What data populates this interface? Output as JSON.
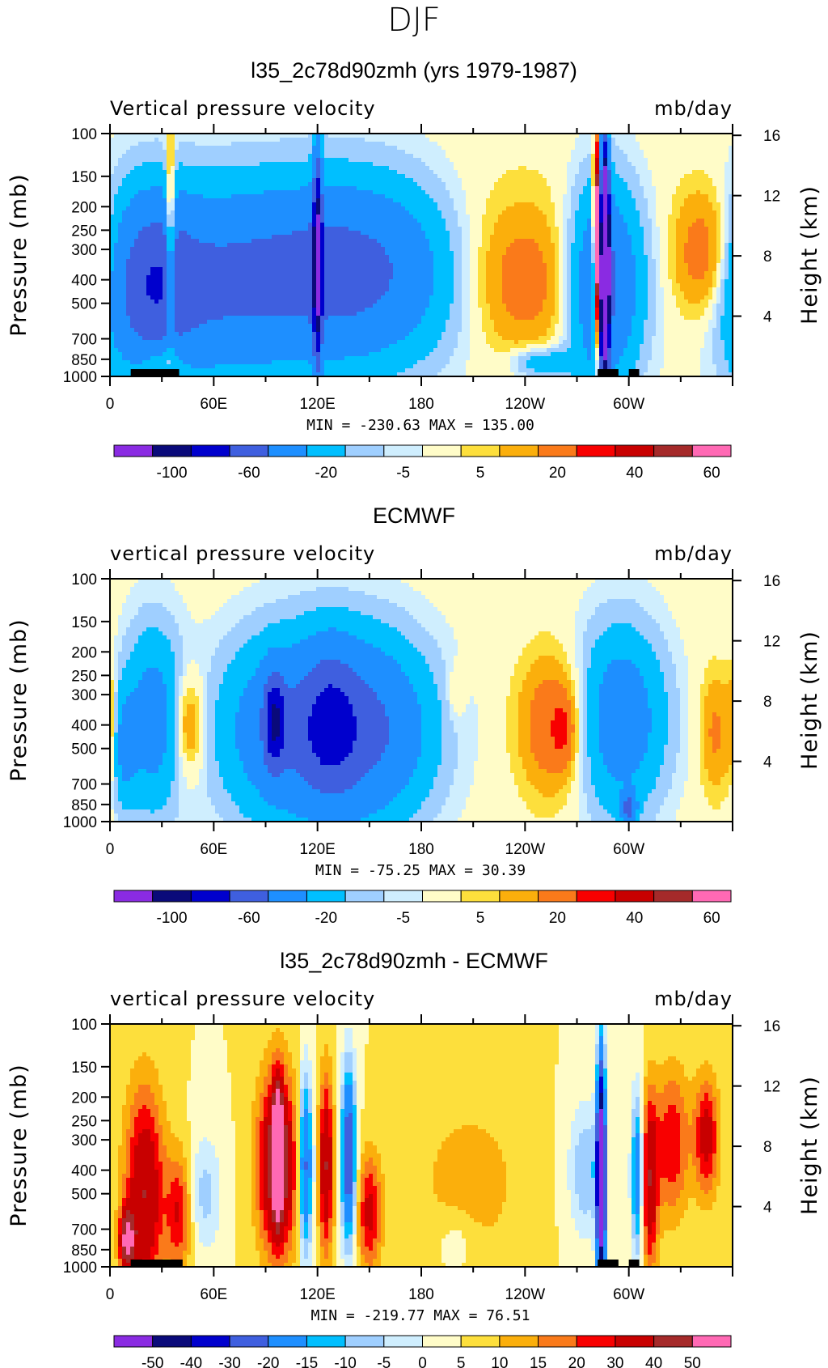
{
  "page_title": "DJF",
  "colors": {
    "omega": [
      "#8a2be2",
      "#0a0a7a",
      "#0000cd",
      "#3f5fdf",
      "#1e8fff",
      "#00bfff",
      "#9fcfff",
      "#cfeefe",
      "#fffcc8",
      "#fddf3c",
      "#fbaf0c",
      "#fa7a1a",
      "#f80000",
      "#c80000",
      "#a52a2a",
      "#ff69b4"
    ],
    "diff": [
      "#8a2be2",
      "#0a0a7a",
      "#0000cd",
      "#3f5fdf",
      "#1e8fff",
      "#00bfff",
      "#9fcfff",
      "#cfeefe",
      "#fffcc8",
      "#fddf3c",
      "#fbaf0c",
      "#fa7a1a",
      "#f80000",
      "#c80000",
      "#a52a2a",
      "#ff69b4"
    ],
    "land": "#000000"
  },
  "chart_data": [
    {
      "type": "heatmap",
      "title": "l35_2c78d90zmh (yrs 1979-1987)",
      "left_label": "Vertical pressure velocity",
      "right_label": "mb/day",
      "ylabel": "Pressure (mb)",
      "y2label": "Height (km)",
      "xticks": [
        "0",
        "60E",
        "120E",
        "180",
        "120W",
        "60W"
      ],
      "yticks": [
        "100",
        "150",
        "200",
        "250",
        "300",
        "400",
        "500",
        "700",
        "850",
        "1000"
      ],
      "y2ticks": [
        "16",
        "12",
        "8",
        "4"
      ],
      "stats": "MIN = -230.63   MAX = 135.00",
      "colorbar_labels": [
        "-100",
        "-60",
        "-20",
        "-5",
        "5",
        "20",
        "40",
        "60"
      ],
      "colorbar_levels": [
        -100,
        -80,
        -60,
        -40,
        -20,
        -10,
        -5,
        -2,
        2,
        5,
        10,
        20,
        30,
        40,
        50
      ],
      "ylim": [
        1000,
        100
      ],
      "xlim": [
        0,
        357.5
      ],
      "min": -230.63,
      "max": 135.0,
      "features": [
        {
          "lon": 115,
          "p": 380,
          "w": 70,
          "h": 0.62,
          "v": -32
        },
        {
          "lon": 145,
          "p": 360,
          "w": 38,
          "h": 0.55,
          "v": -22
        },
        {
          "lon": 60,
          "p": 450,
          "w": 30,
          "h": 0.6,
          "v": -18
        },
        {
          "lon": 22,
          "p": 420,
          "w": 18,
          "h": 0.6,
          "v": -40
        },
        {
          "lon": 218,
          "p": 350,
          "w": 38,
          "h": 0.6,
          "v": 14
        },
        {
          "lon": 240,
          "p": 430,
          "w": 22,
          "h": 0.45,
          "v": 10
        },
        {
          "lon": 286,
          "p": 420,
          "w": 14,
          "h": 0.65,
          "v": -45
        },
        {
          "lon": 345,
          "p": 320,
          "w": 14,
          "h": 0.45,
          "v": 22
        },
        {
          "lon": 250,
          "p": 880,
          "w": 12,
          "h": 0.1,
          "v": -18
        },
        {
          "lon": 30,
          "p": 850,
          "w": 10,
          "h": 0.1,
          "v": 14
        },
        {
          "lon": 120,
          "p": 330,
          "w": 1.8,
          "h": 0.7,
          "v": -80
        },
        {
          "lon": 286,
          "p": 330,
          "w": 1.8,
          "h": 0.7,
          "v": -200
        },
        {
          "lon": 282,
          "p": 300,
          "w": 1.5,
          "h": 0.6,
          "v": 120
        },
        {
          "lon": 35,
          "p": 300,
          "w": 1.8,
          "h": 0.6,
          "v": 40
        }
      ],
      "land_segments": [
        [
          12,
          40
        ],
        [
          282,
          294
        ],
        [
          300,
          306
        ]
      ]
    },
    {
      "type": "heatmap",
      "title": "ECMWF",
      "left_label": "vertical pressure velocity",
      "right_label": "mb/day",
      "ylabel": "Pressure (mb)",
      "y2label": "Height (km)",
      "xticks": [
        "0",
        "60E",
        "120E",
        "180",
        "120W",
        "60W"
      ],
      "yticks": [
        "100",
        "150",
        "200",
        "250",
        "300",
        "400",
        "500",
        "700",
        "850",
        "1000"
      ],
      "y2ticks": [
        "16",
        "12",
        "8",
        "4"
      ],
      "stats": "MIN = -75.25   MAX =  30.39",
      "colorbar_labels": [
        "-100",
        "-60",
        "-20",
        "-5",
        "5",
        "20",
        "40",
        "60"
      ],
      "colorbar_levels": [
        -100,
        -80,
        -60,
        -40,
        -20,
        -10,
        -5,
        -2,
        2,
        5,
        10,
        20,
        30,
        40,
        50
      ],
      "ylim": [
        1000,
        100
      ],
      "xlim": [
        0,
        357.5
      ],
      "min": -75.25,
      "max": 30.39,
      "features": [
        {
          "lon": 105,
          "p": 420,
          "w": 28,
          "h": 0.6,
          "v": -38
        },
        {
          "lon": 150,
          "p": 420,
          "w": 26,
          "h": 0.6,
          "v": -38
        },
        {
          "lon": 128,
          "p": 380,
          "w": 10,
          "h": 0.5,
          "v": -22
        },
        {
          "lon": 95,
          "p": 380,
          "w": 4,
          "h": 0.3,
          "v": -50
        },
        {
          "lon": 25,
          "p": 380,
          "w": 12,
          "h": 0.6,
          "v": -28
        },
        {
          "lon": 8,
          "p": 500,
          "w": 5,
          "h": 0.4,
          "v": -18
        },
        {
          "lon": 45,
          "p": 400,
          "w": 7,
          "h": 0.35,
          "v": 18
        },
        {
          "lon": 0,
          "p": 400,
          "w": 3,
          "h": 0.4,
          "v": 12
        },
        {
          "lon": 258,
          "p": 400,
          "w": 14,
          "h": 0.45,
          "v": 20
        },
        {
          "lon": 262,
          "p": 420,
          "w": 4,
          "h": 0.2,
          "v": 12
        },
        {
          "lon": 295,
          "p": 380,
          "w": 18,
          "h": 0.6,
          "v": -32
        },
        {
          "lon": 300,
          "p": 880,
          "w": 3,
          "h": 0.1,
          "v": -40
        },
        {
          "lon": 350,
          "p": 430,
          "w": 6,
          "h": 0.4,
          "v": 12
        },
        {
          "lon": 200,
          "p": 300,
          "w": 4,
          "h": 0.2,
          "v": 6
        }
      ],
      "land_segments": []
    },
    {
      "type": "heatmap",
      "title": "l35_2c78d90zmh - ECMWF",
      "left_label": "vertical pressure velocity",
      "right_label": "mb/day",
      "ylabel": "Pressure (mb)",
      "y2label": "Height (km)",
      "xticks": [
        "0",
        "60E",
        "120E",
        "180",
        "120W",
        "60W"
      ],
      "yticks": [
        "100",
        "150",
        "200",
        "250",
        "300",
        "400",
        "500",
        "700",
        "850",
        "1000"
      ],
      "y2ticks": [
        "16",
        "12",
        "8",
        "4"
      ],
      "stats": "MIN = -219.77   MAX =  76.51",
      "colorbar_labels": [
        "-50",
        "-40",
        "-30",
        "-20",
        "-15",
        "-10",
        "-5",
        "0",
        "5",
        "10",
        "15",
        "20",
        "30",
        "40",
        "50"
      ],
      "colorbar_levels": [
        -60,
        -50,
        -40,
        -30,
        -20,
        -15,
        -10,
        -5,
        0,
        5,
        10,
        15,
        20,
        30,
        40
      ],
      "ylim": [
        1000,
        100
      ],
      "xlim": [
        0,
        357.5
      ],
      "min": -219.77,
      "max": 76.51,
      "features": [
        {
          "lon": 97,
          "p": 380,
          "w": 8,
          "h": 0.6,
          "v": 38
        },
        {
          "lon": 97,
          "p": 330,
          "w": 2,
          "h": 0.4,
          "v": 60
        },
        {
          "lon": 113,
          "p": 380,
          "w": 3,
          "h": 0.6,
          "v": -35
        },
        {
          "lon": 125,
          "p": 380,
          "w": 3,
          "h": 0.6,
          "v": 30
        },
        {
          "lon": 138,
          "p": 350,
          "w": 3,
          "h": 0.6,
          "v": -40
        },
        {
          "lon": 150,
          "p": 600,
          "w": 5,
          "h": 0.4,
          "v": 22
        },
        {
          "lon": 20,
          "p": 500,
          "w": 8,
          "h": 0.7,
          "v": 30
        },
        {
          "lon": 10,
          "p": 780,
          "w": 3,
          "h": 0.2,
          "v": 40
        },
        {
          "lon": 40,
          "p": 600,
          "w": 5,
          "h": 0.4,
          "v": 20
        },
        {
          "lon": 55,
          "p": 500,
          "w": 7,
          "h": 0.4,
          "v": -12
        },
        {
          "lon": 208,
          "p": 450,
          "w": 22,
          "h": 0.55,
          "v": 8
        },
        {
          "lon": 275,
          "p": 400,
          "w": 7,
          "h": 0.45,
          "v": -15
        },
        {
          "lon": 284,
          "p": 430,
          "w": 1.8,
          "h": 0.8,
          "v": -80
        },
        {
          "lon": 305,
          "p": 420,
          "w": 2.5,
          "h": 0.55,
          "v": -30
        },
        {
          "lon": 312,
          "p": 450,
          "w": 3.5,
          "h": 0.6,
          "v": 28
        },
        {
          "lon": 325,
          "p": 310,
          "w": 7,
          "h": 0.5,
          "v": 20
        },
        {
          "lon": 345,
          "p": 290,
          "w": 5,
          "h": 0.4,
          "v": 24
        },
        {
          "lon": 200,
          "p": 780,
          "w": 8,
          "h": 0.2,
          "v": -6
        }
      ],
      "land_segments": [
        [
          12,
          42
        ],
        [
          282,
          294
        ],
        [
          300,
          306
        ]
      ]
    }
  ]
}
